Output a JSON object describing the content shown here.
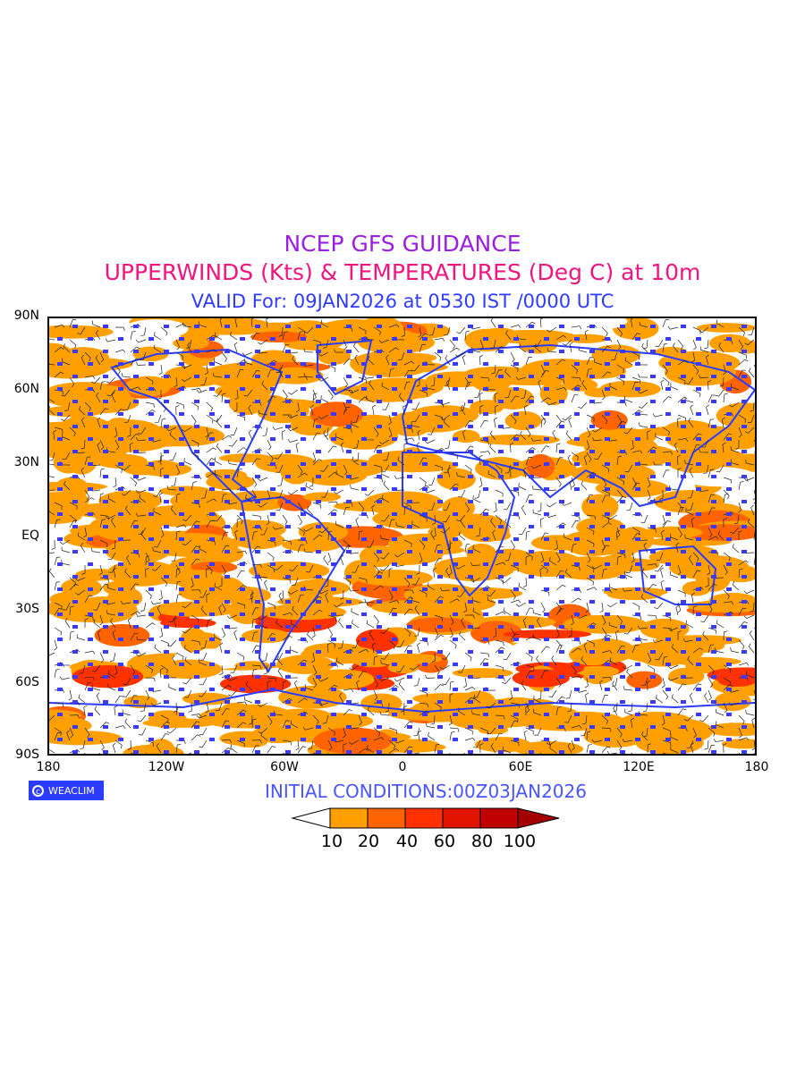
{
  "title": {
    "line1": "NCEP GFS GUIDANCE",
    "line2": "UPPERWINDS (Kts) & TEMPERATURES (Deg C) at 10m",
    "line3": "VALID For: 09JAN2026 at 0530 IST /0000 UTC"
  },
  "axes": {
    "lat_labels": [
      "90N",
      "60N",
      "30N",
      "EQ",
      "30S",
      "60S",
      "90S"
    ],
    "lon_labels": [
      "180",
      "120W",
      "60W",
      "0",
      "60E",
      "120E",
      "180"
    ]
  },
  "logo": {
    "text": "WEACLIM",
    "icon": "copyright-icon"
  },
  "initial_conditions": "INITIAL CONDITIONS:00Z03JAN2026",
  "legend": {
    "labels": [
      "10",
      "20",
      "40",
      "60",
      "80",
      "100"
    ],
    "colors": [
      "#ffffff",
      "#ffa000",
      "#ff6400",
      "#ff3200",
      "#e11400",
      "#c00000",
      "#a50000"
    ]
  },
  "colors": {
    "land_outline": "#2b3cff",
    "temp_text": "#3a3aff",
    "barb": "#000000"
  }
}
